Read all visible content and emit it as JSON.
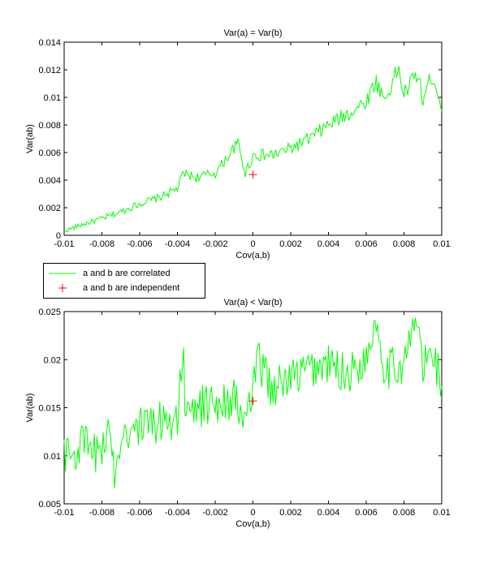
{
  "chart_data": [
    {
      "type": "line",
      "title": "Var(a) = Var(b)",
      "xlabel": "Cov(a,b)",
      "ylabel": "Var(ab)",
      "xlim": [
        -0.01,
        0.01
      ],
      "ylim": [
        0,
        0.014
      ],
      "xticks": [
        "-0.01",
        "-0.008",
        "-0.006",
        "-0.004",
        "-0.002",
        "0",
        "0.002",
        "0.004",
        "0.006",
        "0.008",
        "0.01"
      ],
      "yticks": [
        "0",
        "0.002",
        "0.004",
        "0.006",
        "0.008",
        "0.01",
        "0.012",
        "0.014"
      ],
      "series": [
        {
          "name": "a and b are correlated",
          "color": "#00ff00",
          "style": "line",
          "x": [
            -0.01,
            -0.009,
            -0.008,
            -0.007,
            -0.006,
            -0.005,
            -0.004,
            -0.0037,
            -0.003,
            -0.002,
            -0.0008,
            -0.0004,
            0,
            0.001,
            0.002,
            0.003,
            0.004,
            0.005,
            0.006,
            0.0065,
            0.007,
            0.0077,
            0.008,
            0.0087,
            0.009,
            0.0095,
            0.01
          ],
          "y": [
            0.0003,
            0.0008,
            0.0012,
            0.0017,
            0.0023,
            0.0027,
            0.0034,
            0.0045,
            0.0042,
            0.0045,
            0.0067,
            0.0045,
            0.0058,
            0.0058,
            0.0063,
            0.007,
            0.008,
            0.0088,
            0.0097,
            0.0112,
            0.0098,
            0.0121,
            0.0102,
            0.0118,
            0.0098,
            0.0117,
            0.0094
          ]
        },
        {
          "name": "a and b are independent",
          "color": "#ff0000",
          "style": "marker",
          "x": [
            0
          ],
          "y": [
            0.0044
          ]
        }
      ]
    },
    {
      "type": "line",
      "title": "Var(a) < Var(b)",
      "xlabel": "Cov(a,b)",
      "ylabel": "Var(ab)",
      "xlim": [
        -0.01,
        0.01
      ],
      "ylim": [
        0.005,
        0.025
      ],
      "xticks": [
        "-0.01",
        "-0.008",
        "-0.006",
        "-0.004",
        "-0.002",
        "0",
        "0.002",
        "0.004",
        "0.006",
        "0.008",
        "0.01"
      ],
      "yticks": [
        "0.005",
        "0.01",
        "0.015",
        "0.02",
        "0.025"
      ],
      "series": [
        {
          "name": "a and b are correlated",
          "color": "#00ff00",
          "style": "line",
          "x": [
            -0.01,
            -0.0095,
            -0.009,
            -0.0085,
            -0.008,
            -0.0075,
            -0.0073,
            -0.007,
            -0.006,
            -0.005,
            -0.004,
            -0.0037,
            -0.0036,
            -0.003,
            -0.002,
            -0.001,
            -0.0005,
            0,
            0.0003,
            0.001,
            0.002,
            0.003,
            0.004,
            0.005,
            0.006,
            0.0065,
            0.007,
            0.008,
            0.0087,
            0.009,
            0.0095,
            0.01
          ],
          "y": [
            0.0105,
            0.01,
            0.0115,
            0.01,
            0.011,
            0.012,
            0.008,
            0.0125,
            0.013,
            0.0135,
            0.014,
            0.022,
            0.0135,
            0.015,
            0.0155,
            0.016,
            0.0135,
            0.0165,
            0.02,
            0.017,
            0.018,
            0.019,
            0.0195,
            0.0185,
            0.02,
            0.0245,
            0.019,
            0.0195,
            0.0245,
            0.019,
            0.021,
            0.0175
          ]
        },
        {
          "name": "a and b are independent",
          "color": "#ff0000",
          "style": "marker",
          "x": [
            0
          ],
          "y": [
            0.0157
          ]
        }
      ]
    }
  ],
  "legend": {
    "items": [
      {
        "label": "a and b are correlated",
        "color": "#00ff00",
        "kind": "line"
      },
      {
        "label": "a and b are independent",
        "color": "#ff0000",
        "kind": "marker"
      }
    ]
  }
}
